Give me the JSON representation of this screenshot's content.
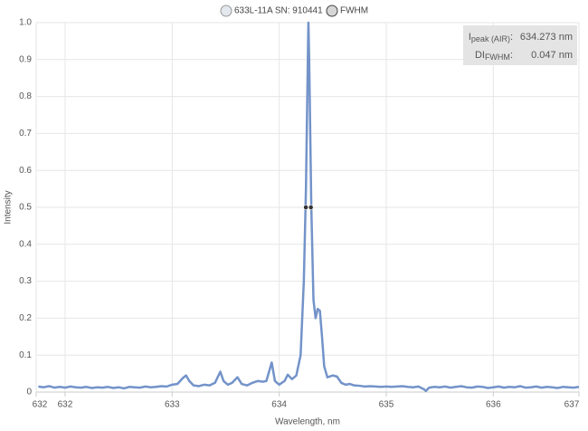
{
  "chart_data": {
    "type": "line",
    "xlabel": "Wavelength, nm",
    "ylabel": "Intensity",
    "xlim": [
      631.73,
      636.8
    ],
    "ylim": [
      0,
      1
    ],
    "xticks": [
      {
        "value": 631.73,
        "label": "632"
      },
      632,
      633,
      634,
      635,
      636,
      {
        "value": 636.8,
        "label": "637"
      }
    ],
    "yticks": [
      0,
      0.1,
      0.2,
      0.3,
      0.4,
      0.5,
      0.6,
      0.7,
      0.8,
      0.9,
      {
        "value": 1,
        "label": "1.0"
      }
    ],
    "grid": true,
    "legend": "top",
    "annotation": [
      {
        "name": "I",
        "sub": "peak (AIR)",
        "sep": ":",
        "value": "634.273 nm"
      },
      {
        "name": "DI",
        "sub": "FWHM",
        "sep": ":",
        "value": "0.047 nm"
      }
    ],
    "series": [
      {
        "name": "633L-11A SN: 910441",
        "color": "#7393c9",
        "style": "line",
        "x": [
          631.75,
          631.8,
          631.85,
          631.9,
          631.95,
          632.0,
          632.05,
          632.1,
          632.15,
          632.2,
          632.25,
          632.3,
          632.35,
          632.4,
          632.45,
          632.5,
          632.55,
          632.6,
          632.65,
          632.7,
          632.75,
          632.8,
          632.85,
          632.9,
          632.95,
          633.0,
          633.05,
          633.1,
          633.13,
          633.16,
          633.2,
          633.25,
          633.3,
          633.35,
          633.4,
          633.45,
          633.48,
          633.52,
          633.56,
          633.61,
          633.65,
          633.7,
          633.75,
          633.8,
          633.85,
          633.88,
          633.93,
          633.96,
          634.0,
          634.05,
          634.08,
          634.12,
          634.16,
          634.2,
          634.23,
          634.25,
          634.27,
          634.273,
          634.28,
          634.3,
          634.32,
          634.34,
          634.36,
          634.38,
          634.4,
          634.42,
          634.45,
          634.5,
          634.54,
          634.58,
          634.62,
          634.66,
          634.7,
          634.75,
          634.8,
          634.85,
          634.9,
          634.95,
          635.0,
          635.05,
          635.1,
          635.15,
          635.2,
          635.25,
          635.3,
          635.35,
          635.37,
          635.4,
          635.45,
          635.5,
          635.55,
          635.6,
          635.65,
          635.7,
          635.75,
          635.8,
          635.85,
          635.9,
          635.95,
          636.0,
          636.05,
          636.1,
          636.15,
          636.2,
          636.25,
          636.3,
          636.35,
          636.4,
          636.45,
          636.5,
          636.55,
          636.6,
          636.65,
          636.7,
          636.75,
          636.8
        ],
        "values": [
          0.015,
          0.013,
          0.016,
          0.012,
          0.014,
          0.012,
          0.015,
          0.013,
          0.012,
          0.014,
          0.011,
          0.013,
          0.012,
          0.014,
          0.011,
          0.013,
          0.01,
          0.014,
          0.013,
          0.012,
          0.015,
          0.013,
          0.014,
          0.016,
          0.015,
          0.02,
          0.022,
          0.038,
          0.045,
          0.03,
          0.018,
          0.016,
          0.02,
          0.018,
          0.025,
          0.055,
          0.03,
          0.02,
          0.025,
          0.04,
          0.022,
          0.018,
          0.025,
          0.03,
          0.028,
          0.03,
          0.08,
          0.03,
          0.02,
          0.03,
          0.047,
          0.035,
          0.045,
          0.1,
          0.3,
          0.55,
          0.95,
          1.0,
          0.9,
          0.5,
          0.25,
          0.2,
          0.225,
          0.22,
          0.15,
          0.07,
          0.04,
          0.045,
          0.042,
          0.025,
          0.02,
          0.022,
          0.018,
          0.017,
          0.015,
          0.016,
          0.015,
          0.014,
          0.015,
          0.014,
          0.015,
          0.016,
          0.014,
          0.013,
          0.015,
          0.008,
          0.003,
          0.012,
          0.014,
          0.013,
          0.015,
          0.012,
          0.014,
          0.016,
          0.013,
          0.012,
          0.015,
          0.014,
          0.011,
          0.013,
          0.015,
          0.012,
          0.014,
          0.013,
          0.016,
          0.012,
          0.013,
          0.015,
          0.012,
          0.014,
          0.013,
          0.011,
          0.014,
          0.013,
          0.012,
          0.014
        ]
      },
      {
        "name": "FWHM",
        "color": "#333333",
        "style": "markers",
        "x": [
          634.249,
          634.296
        ],
        "values": [
          0.5,
          0.5
        ]
      }
    ]
  }
}
